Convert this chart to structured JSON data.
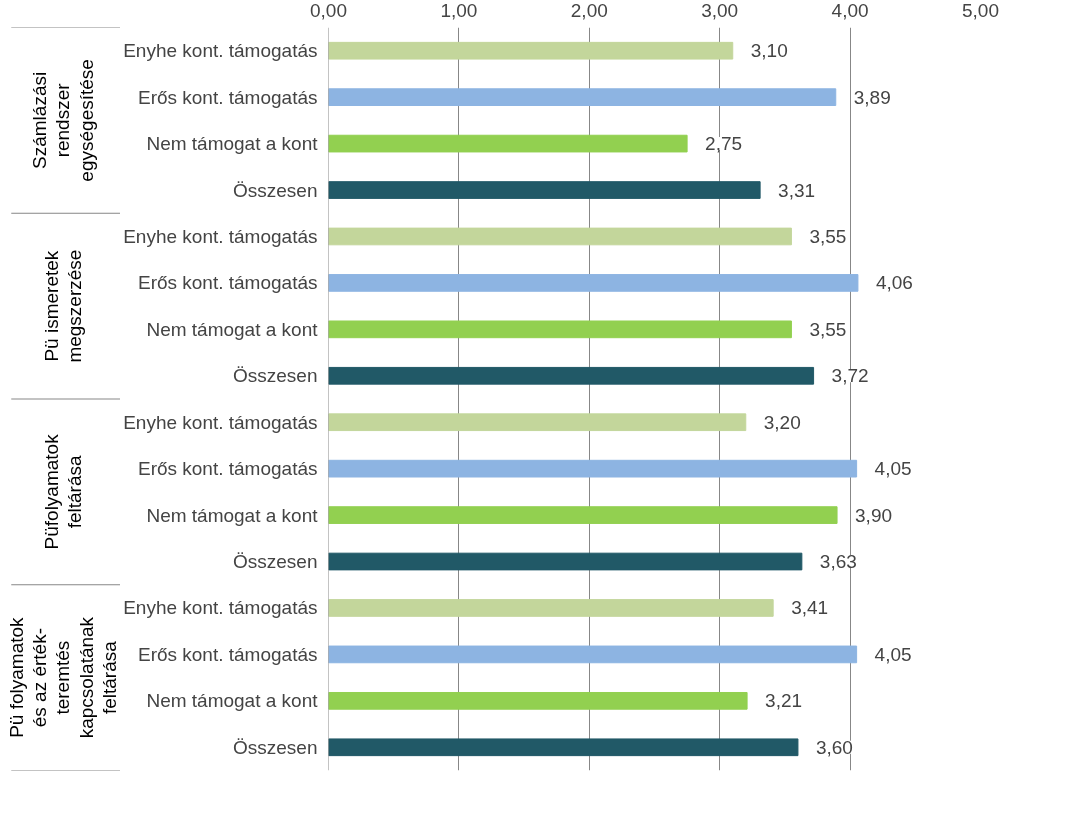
{
  "chart_data": {
    "type": "bar",
    "orientation": "horizontal",
    "categories": [
      "Enyhe kont. támogatás",
      "Erős kont. támogatás",
      "Nem támogat a kont",
      "Összesen",
      "Enyhe kont. támogatás",
      "Erős kont. támogatás",
      "Nem támogat a kont",
      "Összesen",
      "Enyhe kont. támogatás",
      "Erős kont. támogatás",
      "Nem támogat a kont",
      "Összesen",
      "Enyhe kont. támogatás",
      "Erős kont. támogatás",
      "Nem támogat a kont",
      "Összesen"
    ],
    "values": [
      3.1,
      3.89,
      2.75,
      3.31,
      3.55,
      4.06,
      3.55,
      3.72,
      3.2,
      4.05,
      3.9,
      3.63,
      3.41,
      4.05,
      3.21,
      3.6
    ],
    "value_labels": [
      "3,10",
      "3,89",
      "2,75",
      "3,31",
      "3,55",
      "4,06",
      "3,55",
      "3,72",
      "3,20",
      "4,05",
      "3,90",
      "3,63",
      "3,41",
      "4,05",
      "3,21",
      "3,60"
    ],
    "colors": [
      "#c3d69b",
      "#8db4e2",
      "#92d050",
      "#215967",
      "#c3d69b",
      "#8db4e2",
      "#92d050",
      "#215967",
      "#c3d69b",
      "#8db4e2",
      "#92d050",
      "#215967",
      "#c3d69b",
      "#8db4e2",
      "#92d050",
      "#215967"
    ],
    "xlim": [
      0,
      5
    ],
    "xticks": [
      {
        "value": 0,
        "label": "0,00"
      },
      {
        "value": 1,
        "label": "1,00"
      },
      {
        "value": 2,
        "label": "2,00"
      },
      {
        "value": 3,
        "label": "3,00"
      },
      {
        "value": 4,
        "label": "4,00"
      },
      {
        "value": 5,
        "label": "5,00"
      }
    ],
    "grid": "x",
    "annotations": [
      "Számlázási rendszer egységesítése",
      "Pü ismeretek megszerzése",
      "Püfolyamatok feltárása",
      "Pü folyamatok és az érték-teremtés kapcsolatának feltárása"
    ]
  }
}
